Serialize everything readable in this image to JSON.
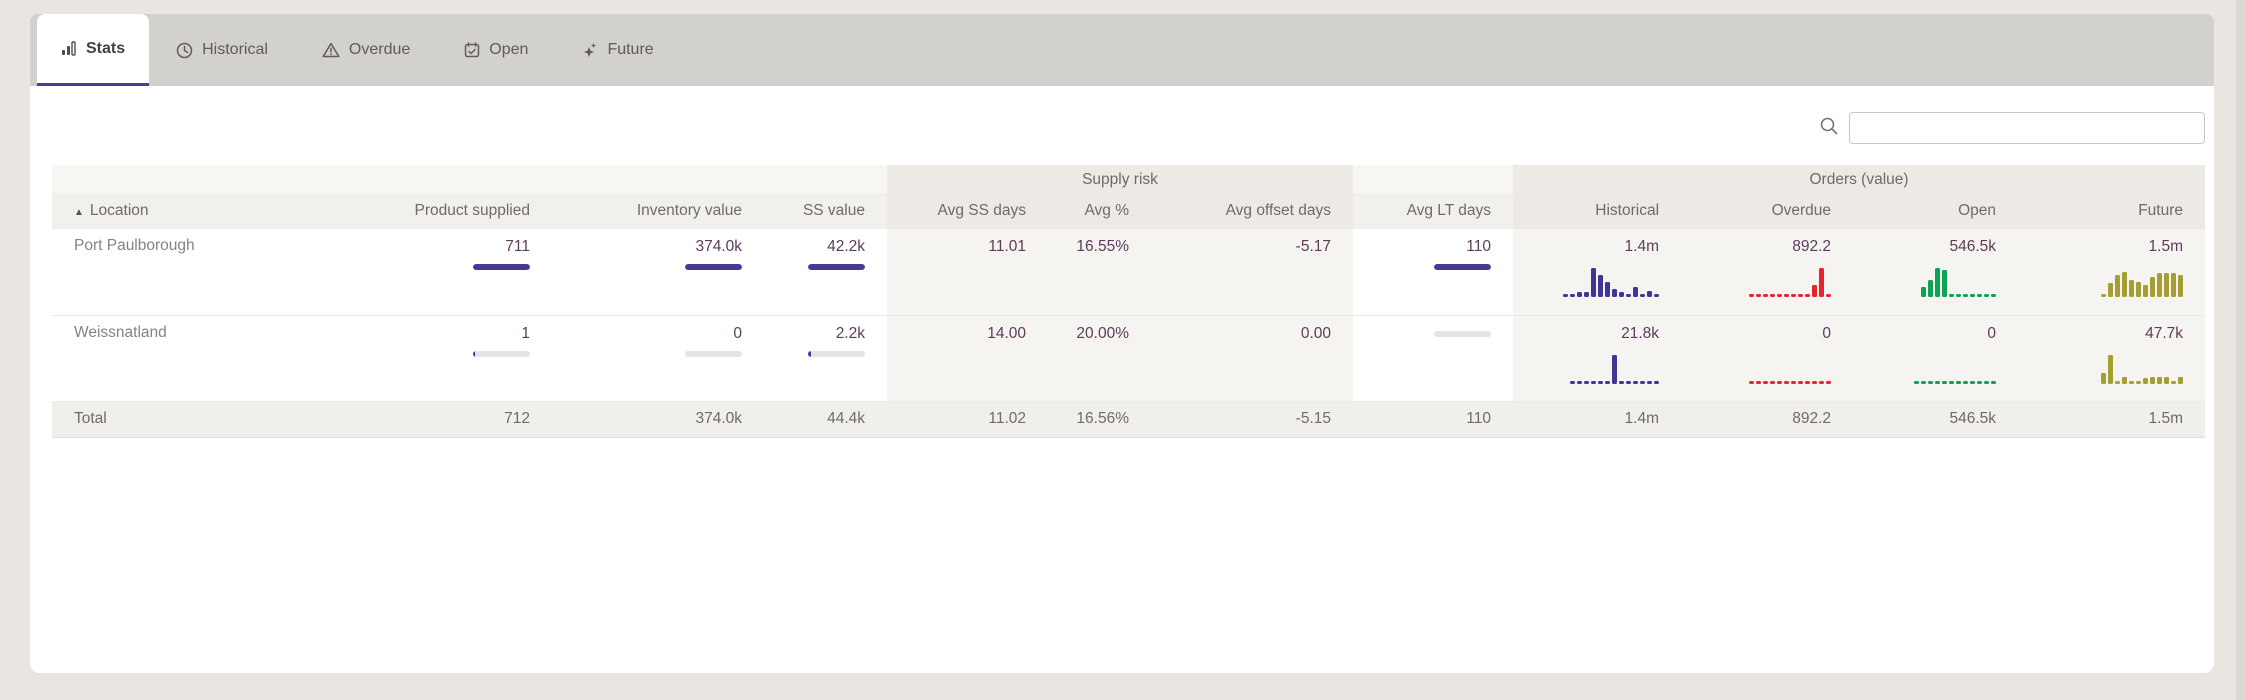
{
  "colors": {
    "accent": "#4a3d96",
    "bar_fill": "#453b94",
    "spark_purple": "#3e3692",
    "spark_red": "#e82330",
    "spark_green": "#0ca353",
    "spark_olive": "#a59f33"
  },
  "tabs": {
    "items": [
      {
        "label": "Stats",
        "icon": "bar-chart-icon",
        "active": true
      },
      {
        "label": "Historical",
        "icon": "clock-icon",
        "active": false
      },
      {
        "label": "Overdue",
        "icon": "warning-icon",
        "active": false
      },
      {
        "label": "Open",
        "icon": "calendar-icon",
        "active": false
      },
      {
        "label": "Future",
        "icon": "sparkles-icon",
        "active": false
      }
    ]
  },
  "search": {
    "value": "",
    "placeholder": ""
  },
  "table": {
    "groups": {
      "supply_risk": "Supply risk",
      "orders": "Orders (value)"
    },
    "sort_indicator": "▲",
    "headers": {
      "location": "Location",
      "product_supplied": "Product supplied",
      "inventory_value": "Inventory value",
      "ss_value": "SS value",
      "avg_ss_days": "Avg SS days",
      "avg_pct": "Avg %",
      "avg_offset_days": "Avg offset days",
      "avg_lt_days": "Avg LT days",
      "historical": "Historical",
      "overdue": "Overdue",
      "open": "Open",
      "future": "Future"
    },
    "rows": [
      {
        "location": "Port Paulborough",
        "product_supplied": {
          "value": "711",
          "bar": {
            "pct": 100
          }
        },
        "inventory_value": {
          "value": "374.0k",
          "bar": {
            "pct": 100
          }
        },
        "ss_value": {
          "value": "42.2k",
          "bar": {
            "pct": 100
          }
        },
        "avg_ss_days": "11.01",
        "avg_pct": "16.55%",
        "avg_offset_days": "-5.17",
        "avg_lt_days": {
          "value": "110",
          "bar": {
            "pct": 100
          }
        },
        "historical": {
          "value": "1.4m",
          "spark": {
            "color": "#3e3692",
            "values": [
              0.6,
              0.6,
              1.6,
              1.6,
              8.5,
              6.5,
              4.3,
              2.4,
              1.6,
              0.9,
              2.8,
              0.7,
              1.9,
              0.7
            ]
          }
        },
        "overdue": {
          "value": "892.2",
          "spark": {
            "color": "#e82330",
            "values": [
              0,
              0,
              0,
              0,
              0,
              0,
              0,
              0,
              0,
              3.5,
              8.5,
              0
            ]
          }
        },
        "open": {
          "value": "546.5k",
          "spark": {
            "color": "#0ca353",
            "values": [
              2.8,
              5,
              8.5,
              7.8,
              0,
              0,
              0,
              0,
              0,
              0,
              0
            ]
          }
        },
        "future": {
          "value": "1.5m",
          "spark": {
            "color": "#a59f33",
            "values": [
              1,
              4,
              6.5,
              7.5,
              5,
              4.5,
              3.5,
              6,
              7,
              7,
              7,
              6.5
            ]
          }
        }
      },
      {
        "location": "Weissnatland",
        "product_supplied": {
          "value": "1",
          "bar": {
            "pct": 4
          }
        },
        "inventory_value": {
          "value": "0",
          "bar": {
            "pct": 0
          }
        },
        "ss_value": {
          "value": "2.2k",
          "bar": {
            "pct": 6
          }
        },
        "avg_ss_days": "14.00",
        "avg_pct": "20.00%",
        "avg_offset_days": "0.00",
        "avg_lt_days": {
          "value": "",
          "bar": {
            "pct": 0
          }
        },
        "historical": {
          "value": "21.8k",
          "spark": {
            "color": "#3e3692",
            "values": [
              0,
              0,
              0,
              0,
              0,
              0,
              8.5,
              0,
              0,
              0,
              0,
              0,
              0
            ]
          }
        },
        "overdue": {
          "value": "0",
          "spark": {
            "color": "#e82330",
            "values": [
              0,
              0,
              0,
              0,
              0,
              0,
              0,
              0,
              0,
              0,
              0,
              0
            ]
          }
        },
        "open": {
          "value": "0",
          "spark": {
            "color": "#0ca353",
            "values": [
              0,
              0,
              0,
              0,
              0,
              0,
              0,
              0,
              0,
              0,
              0,
              0
            ]
          }
        },
        "future": {
          "value": "47.7k",
          "spark": {
            "color": "#a59f33",
            "values": [
              3,
              8.5,
              0.8,
              2,
              0.6,
              0.6,
              1.5,
              2,
              2,
              2,
              0.8,
              2
            ]
          }
        }
      }
    ],
    "total": {
      "label": "Total",
      "product_supplied": "712",
      "inventory_value": "374.0k",
      "ss_value": "44.4k",
      "avg_ss_days": "11.02",
      "avg_pct": "16.56%",
      "avg_offset_days": "-5.15",
      "avg_lt_days": "110",
      "historical": "1.4m",
      "overdue": "892.2",
      "open": "546.5k",
      "future": "1.5m"
    }
  }
}
